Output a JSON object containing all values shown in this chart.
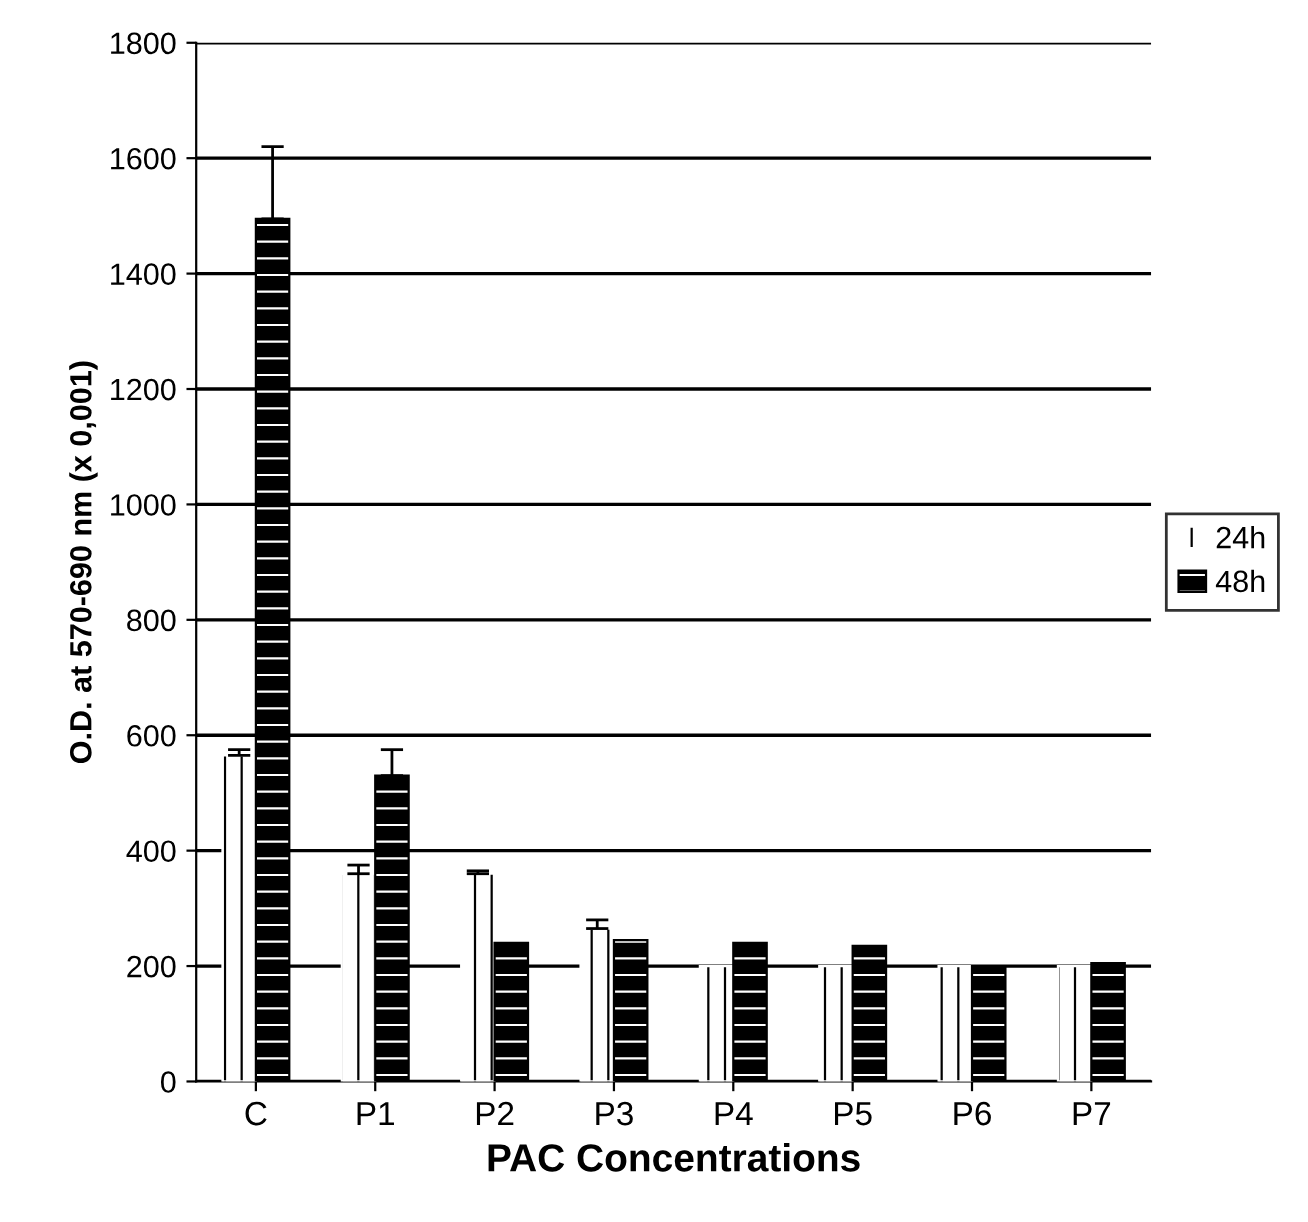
{
  "chart_data": {
    "type": "bar",
    "xlabel": "PAC Concentrations",
    "ylabel": "O.D. at 570-690 nm (x 0,001)",
    "categories": [
      "C",
      "P1",
      "P2",
      "P3",
      "P4",
      "P5",
      "P6",
      "P7"
    ],
    "series": [
      {
        "name": "24h",
        "color": "#ffffff",
        "values": [
          565,
          360,
          360,
          265,
          200,
          200,
          200,
          200
        ],
        "errors": [
          10,
          15,
          5,
          15,
          null,
          null,
          null,
          null
        ]
      },
      {
        "name": "48h",
        "color": "#000000",
        "values": [
          1495,
          530,
          240,
          245,
          240,
          235,
          200,
          205
        ],
        "errors": [
          125,
          45,
          null,
          null,
          null,
          null,
          null,
          null
        ]
      }
    ],
    "ylim": [
      0,
      1800
    ],
    "yticks": [
      0,
      200,
      400,
      600,
      800,
      1000,
      1200,
      1400,
      1600,
      1800
    ],
    "grid": "y",
    "legend": "right"
  }
}
